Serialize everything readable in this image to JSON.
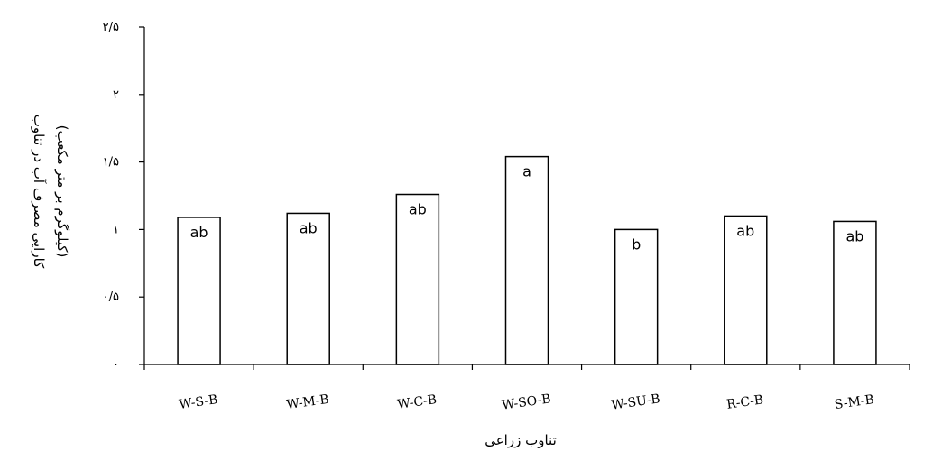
{
  "chart_data": {
    "type": "bar",
    "categories": [
      "W-S-B",
      "W-M-B",
      "W-C-B",
      "W-SO-B",
      "W-SU-B",
      "R-C-B",
      "S-M-B"
    ],
    "values": [
      1.09,
      1.12,
      1.26,
      1.54,
      1.0,
      1.1,
      1.06
    ],
    "bar_labels": [
      "ab",
      "ab",
      "ab",
      "a",
      "b",
      "ab",
      "ab"
    ],
    "y_ticks": [
      "۰",
      "۰/۵",
      "۱",
      "۱/۵",
      "۲",
      "۲/۵"
    ],
    "ylim": [
      0,
      2.5
    ],
    "xlabel": "تناوب زراعی",
    "ylabel_line1": "کارایی مصرف آب در تناوب",
    "ylabel_line2": "(کیلوگرم بر متر مکعب)",
    "bar_fill": "#ffffff",
    "bar_stroke": "#000000",
    "grid": false
  }
}
